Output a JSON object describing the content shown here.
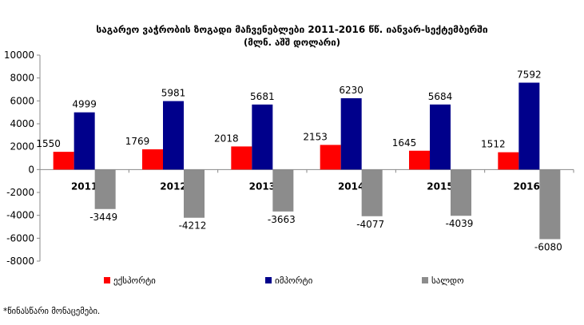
{
  "chart_data": {
    "type": "bar",
    "title": "საგარეო ვაჭრობის ზოგადი მაჩვენებლები 2011-2016 წწ. იანვარ-სექტემბერში",
    "subtitle": "(მლნ. აშშ დოლარი)",
    "categories": [
      "2011",
      "2012",
      "2013",
      "2014",
      "2015",
      "2016*"
    ],
    "series": [
      {
        "name": "ექსპორტი",
        "color": "#ff0000",
        "values": [
          1550,
          1769,
          2018,
          2153,
          1645,
          1512
        ]
      },
      {
        "name": "იმპორტი",
        "color": "#00008b",
        "values": [
          4999,
          5981,
          5681,
          6230,
          5684,
          7592
        ]
      },
      {
        "name": "სალდო",
        "color": "#8c8c8c",
        "values": [
          -3449,
          -4212,
          -3663,
          -4077,
          -4039,
          -6080
        ]
      }
    ],
    "ylim": [
      -8000,
      10000
    ],
    "yticks": [
      -8000,
      -6000,
      -4000,
      -2000,
      0,
      2000,
      4000,
      6000,
      8000,
      10000
    ],
    "xlabel": "",
    "ylabel": "",
    "grid": false,
    "legend_position": "bottom"
  },
  "footnote": "*წინასწარი მონაცემები."
}
